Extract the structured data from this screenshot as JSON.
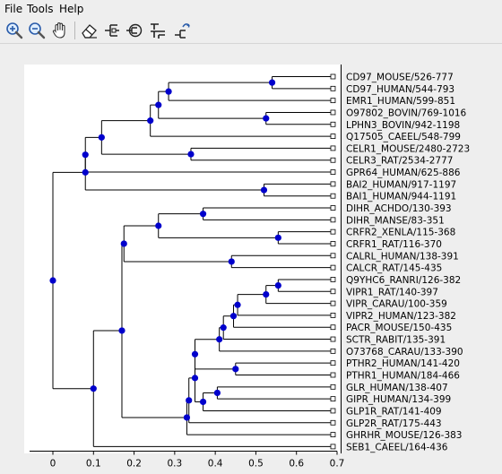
{
  "menubar": {
    "items": [
      {
        "label": "File"
      },
      {
        "label": "Tools"
      },
      {
        "label": "Help"
      }
    ]
  },
  "toolbar": {
    "tools": [
      {
        "icon": "zoom-in-icon"
      },
      {
        "icon": "zoom-out-icon"
      },
      {
        "icon": "pan-hand-icon"
      },
      {
        "icon": "eraser-icon"
      },
      {
        "icon": "collapse-tree-icon"
      },
      {
        "icon": "reroot-icon"
      },
      {
        "icon": "tree-layout-icon"
      },
      {
        "icon": "swap-branches-icon"
      }
    ]
  },
  "tree": {
    "leaves": [
      "CD97_MOUSE/526-777",
      "CD97_HUMAN/544-793",
      "EMR1_HUMAN/599-851",
      "O97802_BOVIN/769-1016",
      "LPHN3_BOVIN/942-1198",
      "Q17505_CAEEL/548-799",
      "CELR1_MOUSE/2480-2723",
      "CELR3_RAT/2534-2777",
      "GPR64_HUMAN/625-886",
      "BAI2_HUMAN/917-1197",
      "BAI1_HUMAN/944-1191",
      "DIHR_ACHDO/130-393",
      "DIHR_MANSE/83-351",
      "CRFR2_XENLA/115-368",
      "CRFR1_RAT/116-370",
      "CALRL_HUMAN/138-391",
      "CALCR_RAT/145-435",
      "Q9YHC6_RANRI/126-382",
      "VIPR1_RAT/140-397",
      "VIPR_CARAU/100-359",
      "VIPR2_HUMAN/123-382",
      "PACR_MOUSE/150-435",
      "SCTR_RABIT/135-391",
      "O73768_CARAU/133-390",
      "PTHR2_HUMAN/141-420",
      "PTHR1_HUMAN/184-466",
      "GLR_HUMAN/138-407",
      "GIPR_HUMAN/134-399",
      "GLP1R_RAT/141-409",
      "GLP2R_RAT/175-443",
      "GHRHR_MOUSE/126-383",
      "SEB1_CAEEL/164-436"
    ],
    "axis_ticks": [
      "0",
      "0.1",
      "0.2",
      "0.3",
      "0.4",
      "0.5",
      "0.6",
      "0.7"
    ],
    "axis_range": [
      0,
      0.7
    ],
    "node_color": "#0000cc",
    "line_color": "#000000",
    "node_depths": {
      "root": 0.0,
      "A": 0.08,
      "A1": 0.08,
      "A2": 0.12,
      "A3": 0.24,
      "A4": 0.26,
      "A5": 0.285,
      "A6": 0.54,
      "A7": 0.52,
      "A8": 0.34,
      "A9": 0.525,
      "B": 0.1,
      "C": 0.17,
      "D": 0.175,
      "E": 0.26,
      "F": 0.37,
      "G": 0.555,
      "H": 0.44,
      "I": 0.33,
      "J": 0.335,
      "K": 0.35,
      "L": 0.35,
      "M": 0.41,
      "N": 0.42,
      "O": 0.445,
      "P": 0.455,
      "Q": 0.525,
      "R": 0.555,
      "S": 0.45,
      "T": 0.37,
      "U": 0.405
    },
    "leaf_depth": 0.69
  }
}
